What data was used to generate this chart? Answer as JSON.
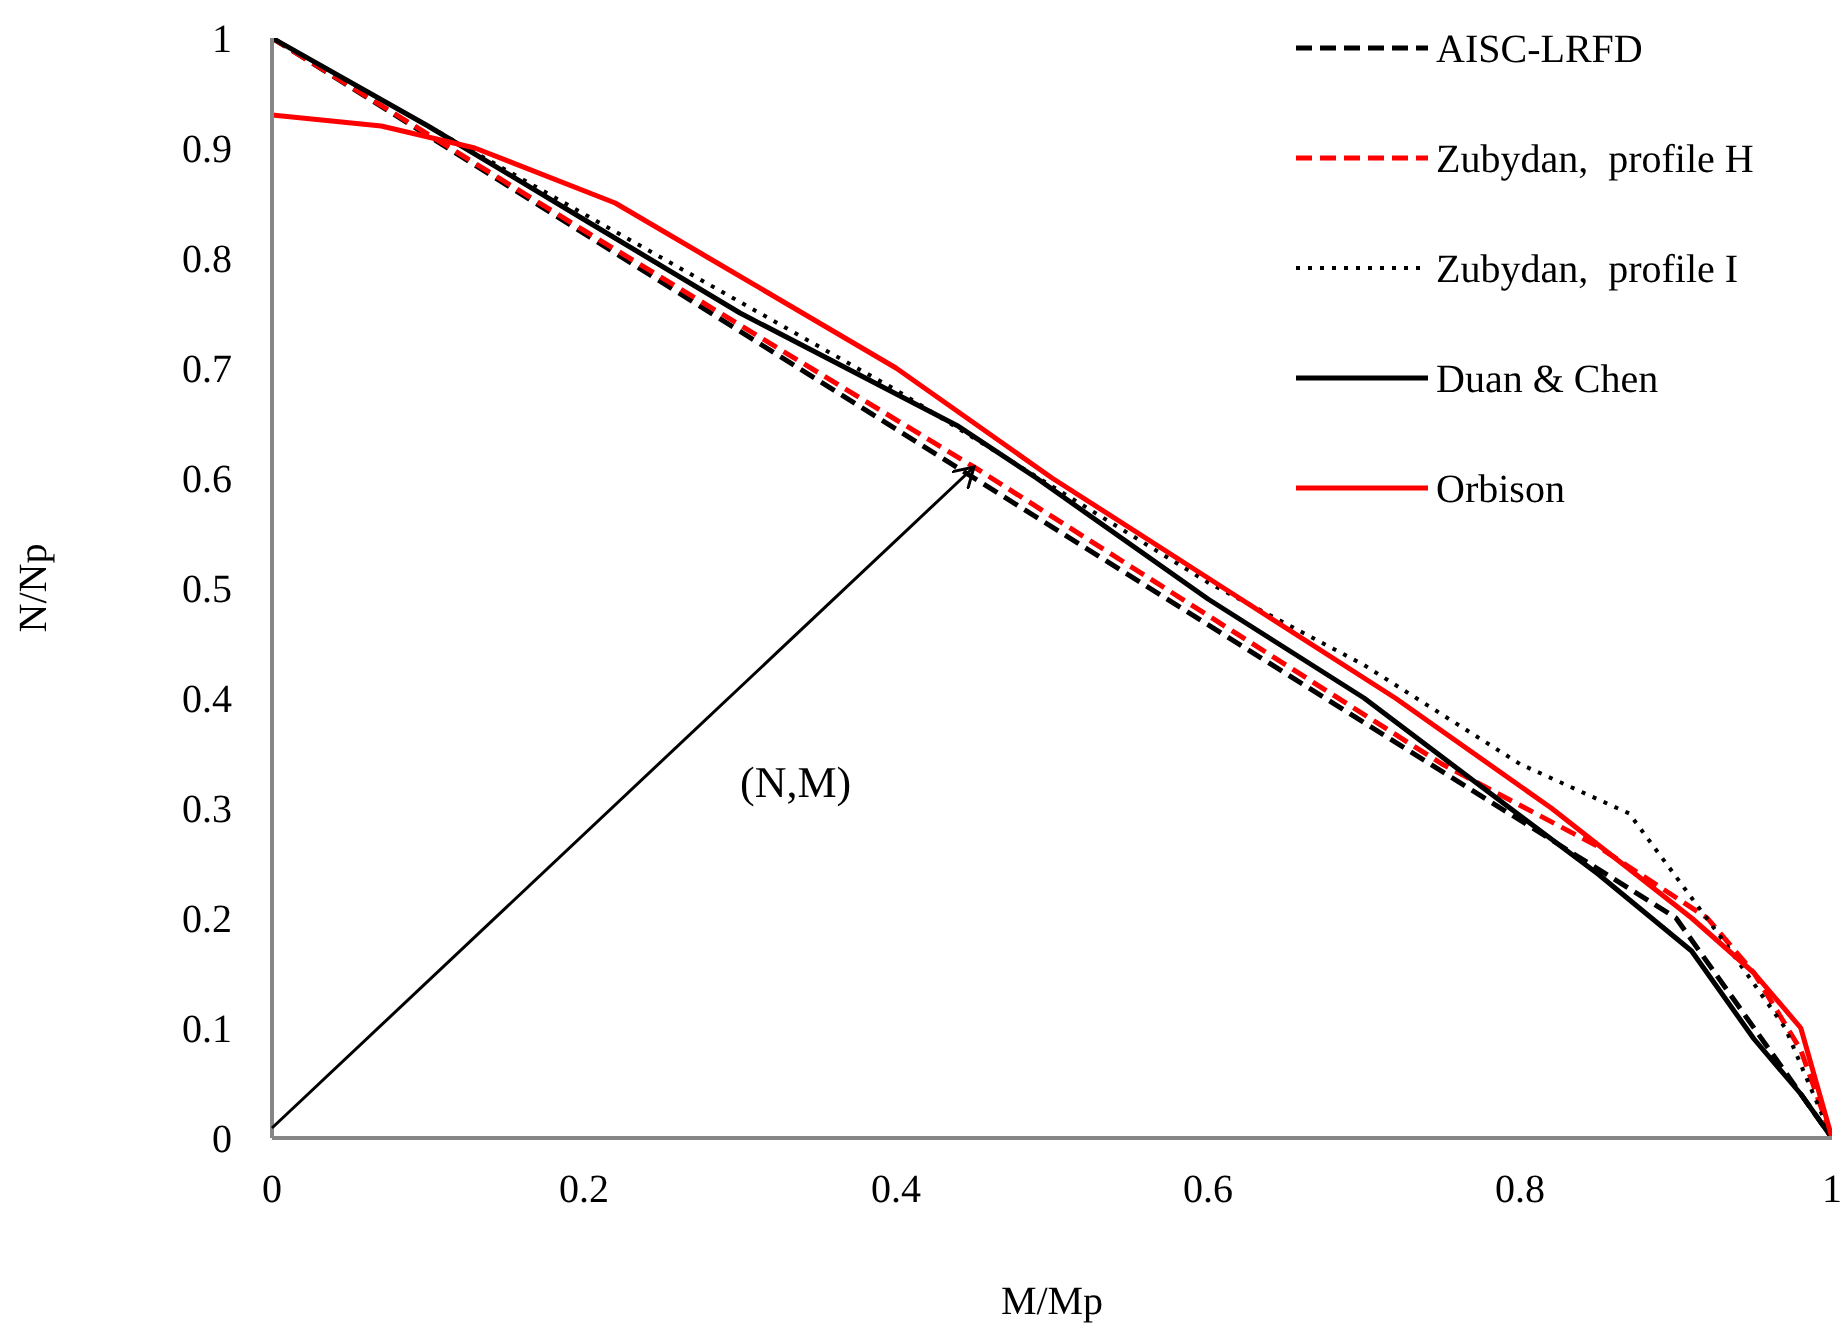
{
  "chart_data": {
    "type": "line",
    "xlabel": "M/Mp",
    "ylabel": "N/Np",
    "xlim": [
      0,
      1
    ],
    "ylim": [
      0,
      1
    ],
    "xticks": [
      0,
      0.2,
      0.4,
      0.6,
      0.8,
      1
    ],
    "yticks": [
      0,
      0.1,
      0.2,
      0.3,
      0.4,
      0.5,
      0.6,
      0.7,
      0.8,
      0.9,
      1
    ],
    "grid": false,
    "legend": "top right",
    "marker": "none",
    "annotations": [
      "(N,M)"
    ],
    "series": [
      {
        "name": "AISC-LRFD",
        "color": "#000000",
        "line_style": "dashed",
        "x": [
          0,
          0.9,
          1
        ],
        "values": [
          1,
          0.2,
          0
        ]
      },
      {
        "name": "Zubydan,  profile H",
        "color": "#ff0000",
        "line_style": "dashed",
        "x": [
          0,
          0.2,
          0.45,
          0.6,
          0.75,
          0.85,
          0.92,
          0.95,
          0.98,
          1
        ],
        "values": [
          1,
          0.825,
          0.61,
          0.475,
          0.34,
          0.265,
          0.2,
          0.15,
          0.08,
          0
        ]
      },
      {
        "name": "Zubydan,  profile I",
        "color": "#000000",
        "line_style": "dotted",
        "x": [
          0,
          0.2,
          0.4,
          0.6,
          0.7,
          0.8,
          0.87,
          0.93,
          0.97,
          1
        ],
        "values": [
          1,
          0.84,
          0.68,
          0.505,
          0.43,
          0.34,
          0.295,
          0.18,
          0.1,
          0
        ]
      },
      {
        "name": "Duan & Chen",
        "color": "#000000",
        "line_style": "solid",
        "x": [
          0,
          0.1,
          0.2,
          0.3,
          0.44,
          0.49,
          0.6,
          0.7,
          0.77,
          0.85,
          0.91,
          0.95,
          0.98,
          1
        ],
        "values": [
          1,
          0.92,
          0.835,
          0.75,
          0.647,
          0.6,
          0.49,
          0.4,
          0.325,
          0.24,
          0.17,
          0.09,
          0.04,
          0
        ]
      },
      {
        "name": "Orbison",
        "color": "#ff0000",
        "line_style": "solid",
        "x": [
          0,
          0.07,
          0.13,
          0.22,
          0.28,
          0.4,
          0.5,
          0.61,
          0.72,
          0.82,
          0.91,
          0.95,
          0.98,
          0.99,
          1
        ],
        "values": [
          0.93,
          0.92,
          0.9,
          0.85,
          0.8,
          0.7,
          0.6,
          0.5,
          0.4,
          0.3,
          0.2,
          0.15,
          0.1,
          0.05,
          0
        ]
      }
    ]
  }
}
